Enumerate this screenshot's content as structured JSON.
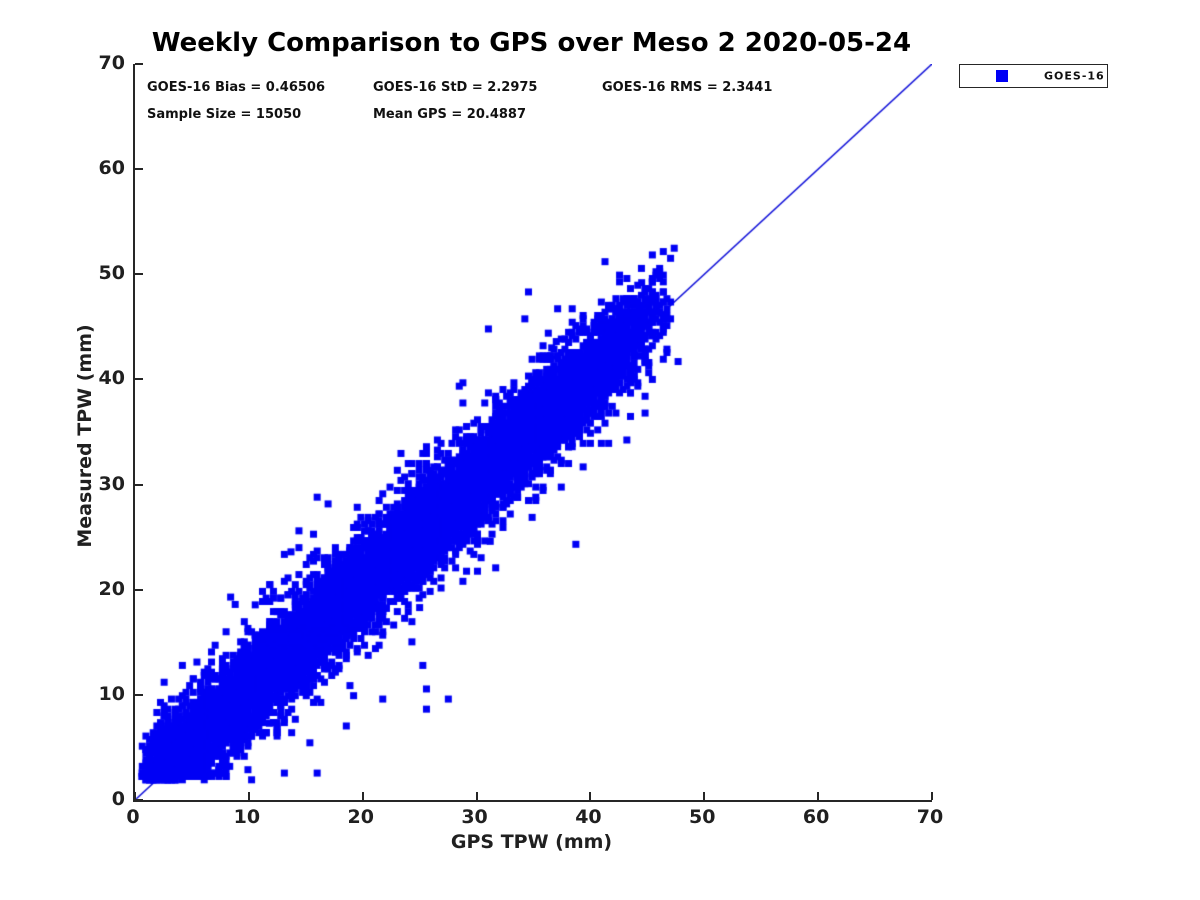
{
  "title": "Weekly Comparison to GPS over Meso 2 2020-05-24",
  "stats": {
    "bias_label": "GOES-16 Bias = 0.46506",
    "std_label": "GOES-16 StD = 2.2975",
    "rms_label": "GOES-16 RMS = 2.3441",
    "sample_label": "Sample Size = 15050",
    "mean_gps_label": "Mean GPS = 20.4887"
  },
  "legend": {
    "position": "top-right-outside",
    "entries": [
      {
        "label": "GOES-16",
        "marker": "filled-square",
        "color": "#0000f5"
      }
    ]
  },
  "chart_data": {
    "type": "scatter",
    "title": "Weekly Comparison to GPS over Meso 2 2020-05-24",
    "xlabel": "GPS TPW (mm)",
    "ylabel": "Measured TPW (mm)",
    "xlim": [
      0,
      70
    ],
    "ylim": [
      0,
      70
    ],
    "xticks": [
      0,
      10,
      20,
      30,
      40,
      50,
      60,
      70
    ],
    "yticks": [
      0,
      10,
      20,
      30,
      40,
      50,
      60,
      70
    ],
    "grid": false,
    "axis_color": "#262626",
    "background": "#ffffff",
    "series": [
      {
        "name": "GOES-16",
        "marker": "filled-square",
        "color": "#0000f5",
        "sample_size": 15050,
        "bias": 0.46506,
        "std": 2.2975,
        "rms": 2.3441,
        "mean_gps": 20.4887,
        "relation": "y approx x + bias with gaussian scatter of given std",
        "x_visible_range": [
          0.5,
          47.7
        ],
        "y_visible_range": [
          2.1,
          49.3
        ],
        "render": {
          "seed": 20200524,
          "points_drawn": 9500,
          "quantize": 0.32,
          "marker_px": 7,
          "x_distribution": {
            "low_ramp": [
              0.5,
              3.0
            ],
            "low_frac": 0.05,
            "uniform": [
              3.0,
              38.5
            ],
            "uniform_frac": 0.84,
            "high_ramp": [
              38.5,
              47.5
            ]
          },
          "wide_tail_frac": 0.035,
          "wide_tail_mult": 2.3,
          "y_floor": 2.05
        },
        "outliers": [
          [
            44.5,
            49.2
          ],
          [
            44.3,
            46.7
          ],
          [
            36.3,
            44.4
          ],
          [
            37.0,
            43.6
          ],
          [
            36.6,
            43.0
          ],
          [
            43.6,
            42.9
          ],
          [
            44.8,
            41.8
          ],
          [
            47.7,
            41.7
          ],
          [
            43.6,
            41.3
          ],
          [
            40.6,
            41.8
          ],
          [
            13.7,
            23.6
          ],
          [
            8.4,
            19.3
          ],
          [
            8.8,
            18.6
          ],
          [
            25.0,
            18.3
          ],
          [
            31.2,
            24.6
          ],
          [
            11.8,
            7.3
          ]
        ]
      }
    ],
    "reference_line": {
      "from": [
        0,
        0
      ],
      "to": [
        70,
        70
      ],
      "color": "#0f0fd8",
      "width": 1.5
    }
  }
}
